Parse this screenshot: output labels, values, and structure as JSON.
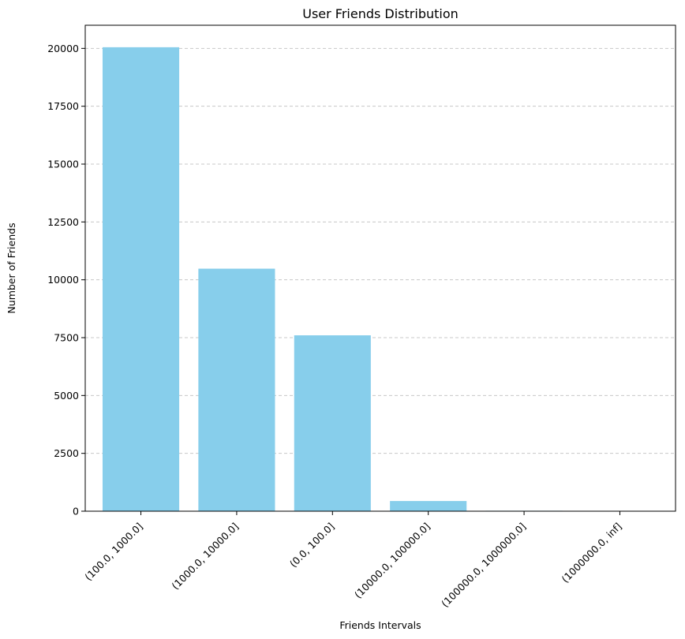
{
  "chart_data": {
    "type": "bar",
    "title": "User Friends Distribution",
    "xlabel": "Friends Intervals",
    "ylabel": "Number of Friends",
    "categories": [
      "(100.0, 1000.0]",
      "(1000.0, 10000.0]",
      "(0.0, 100.0]",
      "(10000.0, 100000.0]",
      "(100000.0, 1000000.0]",
      "(1000000.0, inf]"
    ],
    "values": [
      20050,
      10480,
      7600,
      440,
      20,
      5
    ],
    "ylim": [
      0,
      21000
    ],
    "yticks": [
      0,
      2500,
      5000,
      7500,
      10000,
      12500,
      15000,
      17500,
      20000
    ],
    "ytick_labels": [
      "0",
      "2500",
      "5000",
      "7500",
      "10000",
      "12500",
      "15000",
      "17500",
      "20000"
    ],
    "grid": "y-dashed",
    "bar_color": "#87ceeb",
    "grid_color": "#c8c8c8",
    "xtick_rotation": 45
  }
}
